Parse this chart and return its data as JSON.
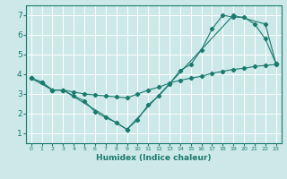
{
  "xlabel": "Humidex (Indice chaleur)",
  "bg_color": "#cce8e8",
  "line_color": "#1a7a6e",
  "grid_color": "#ffffff",
  "xlim": [
    -0.5,
    23.5
  ],
  "ylim": [
    0.5,
    7.5
  ],
  "xticks": [
    0,
    1,
    2,
    3,
    4,
    5,
    6,
    7,
    8,
    9,
    10,
    11,
    12,
    13,
    14,
    15,
    16,
    17,
    18,
    19,
    20,
    21,
    22,
    23
  ],
  "yticks": [
    1,
    2,
    3,
    4,
    5,
    6,
    7
  ],
  "line1_x": [
    0,
    1,
    2,
    3,
    4,
    5,
    6,
    7,
    8,
    9,
    10,
    11,
    12,
    13,
    14,
    15,
    16,
    17,
    18,
    19,
    20,
    21,
    22,
    23
  ],
  "line1_y": [
    3.8,
    3.6,
    3.2,
    3.2,
    2.9,
    2.65,
    2.1,
    1.8,
    1.55,
    1.2,
    1.7,
    2.45,
    2.9,
    3.5,
    4.2,
    4.5,
    5.25,
    6.3,
    7.0,
    6.9,
    6.9,
    6.55,
    5.8,
    4.55
  ],
  "line2_x": [
    0,
    1,
    2,
    3,
    4,
    5,
    6,
    7,
    8,
    9,
    10,
    11,
    12,
    13,
    14,
    15,
    16,
    17,
    18,
    19,
    20,
    21,
    22,
    23
  ],
  "line2_y": [
    3.8,
    3.6,
    3.2,
    3.2,
    3.1,
    3.0,
    2.95,
    2.9,
    2.85,
    2.8,
    3.0,
    3.2,
    3.35,
    3.55,
    3.7,
    3.8,
    3.9,
    4.05,
    4.15,
    4.25,
    4.3,
    4.4,
    4.45,
    4.5
  ],
  "line3_x": [
    0,
    2,
    3,
    9,
    19,
    22,
    23
  ],
  "line3_y": [
    3.8,
    3.2,
    3.2,
    1.2,
    7.0,
    6.55,
    4.55
  ]
}
